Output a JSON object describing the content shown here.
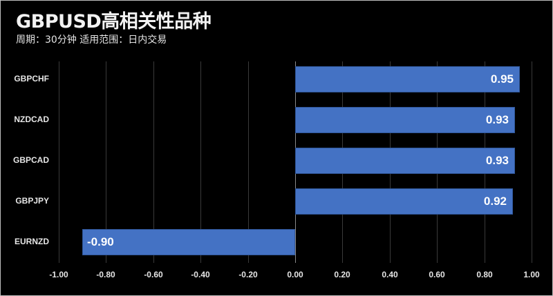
{
  "header": {
    "title": "GBPUSD高相关性品种",
    "subtitle": "周期：30分钟  适用范围：日内交易"
  },
  "colors": {
    "background": "#000000",
    "bar": "#4472c4",
    "text": "#e6e6e6",
    "grid": "#3a3a3a"
  },
  "chart_data": {
    "type": "bar",
    "orientation": "horizontal",
    "title": "GBPUSD高相关性品种",
    "subtitle": "周期：30分钟  适用范围：日内交易",
    "categories": [
      "GBPCHF",
      "NZDCAD",
      "GBPCAD",
      "GBPJPY",
      "EURNZD"
    ],
    "values": [
      0.95,
      0.93,
      0.93,
      0.92,
      -0.9
    ],
    "value_labels": [
      "0.95",
      "0.93",
      "0.93",
      "0.92",
      "-0.90"
    ],
    "xlabel": "",
    "ylabel": "",
    "xlim": [
      -1.0,
      1.0
    ],
    "x_ticks": [
      "-1.00",
      "-0.80",
      "-0.60",
      "-0.40",
      "-0.20",
      "0.00",
      "0.20",
      "0.40",
      "0.60",
      "0.80",
      "1.00"
    ],
    "grid": true,
    "legend": "none"
  }
}
